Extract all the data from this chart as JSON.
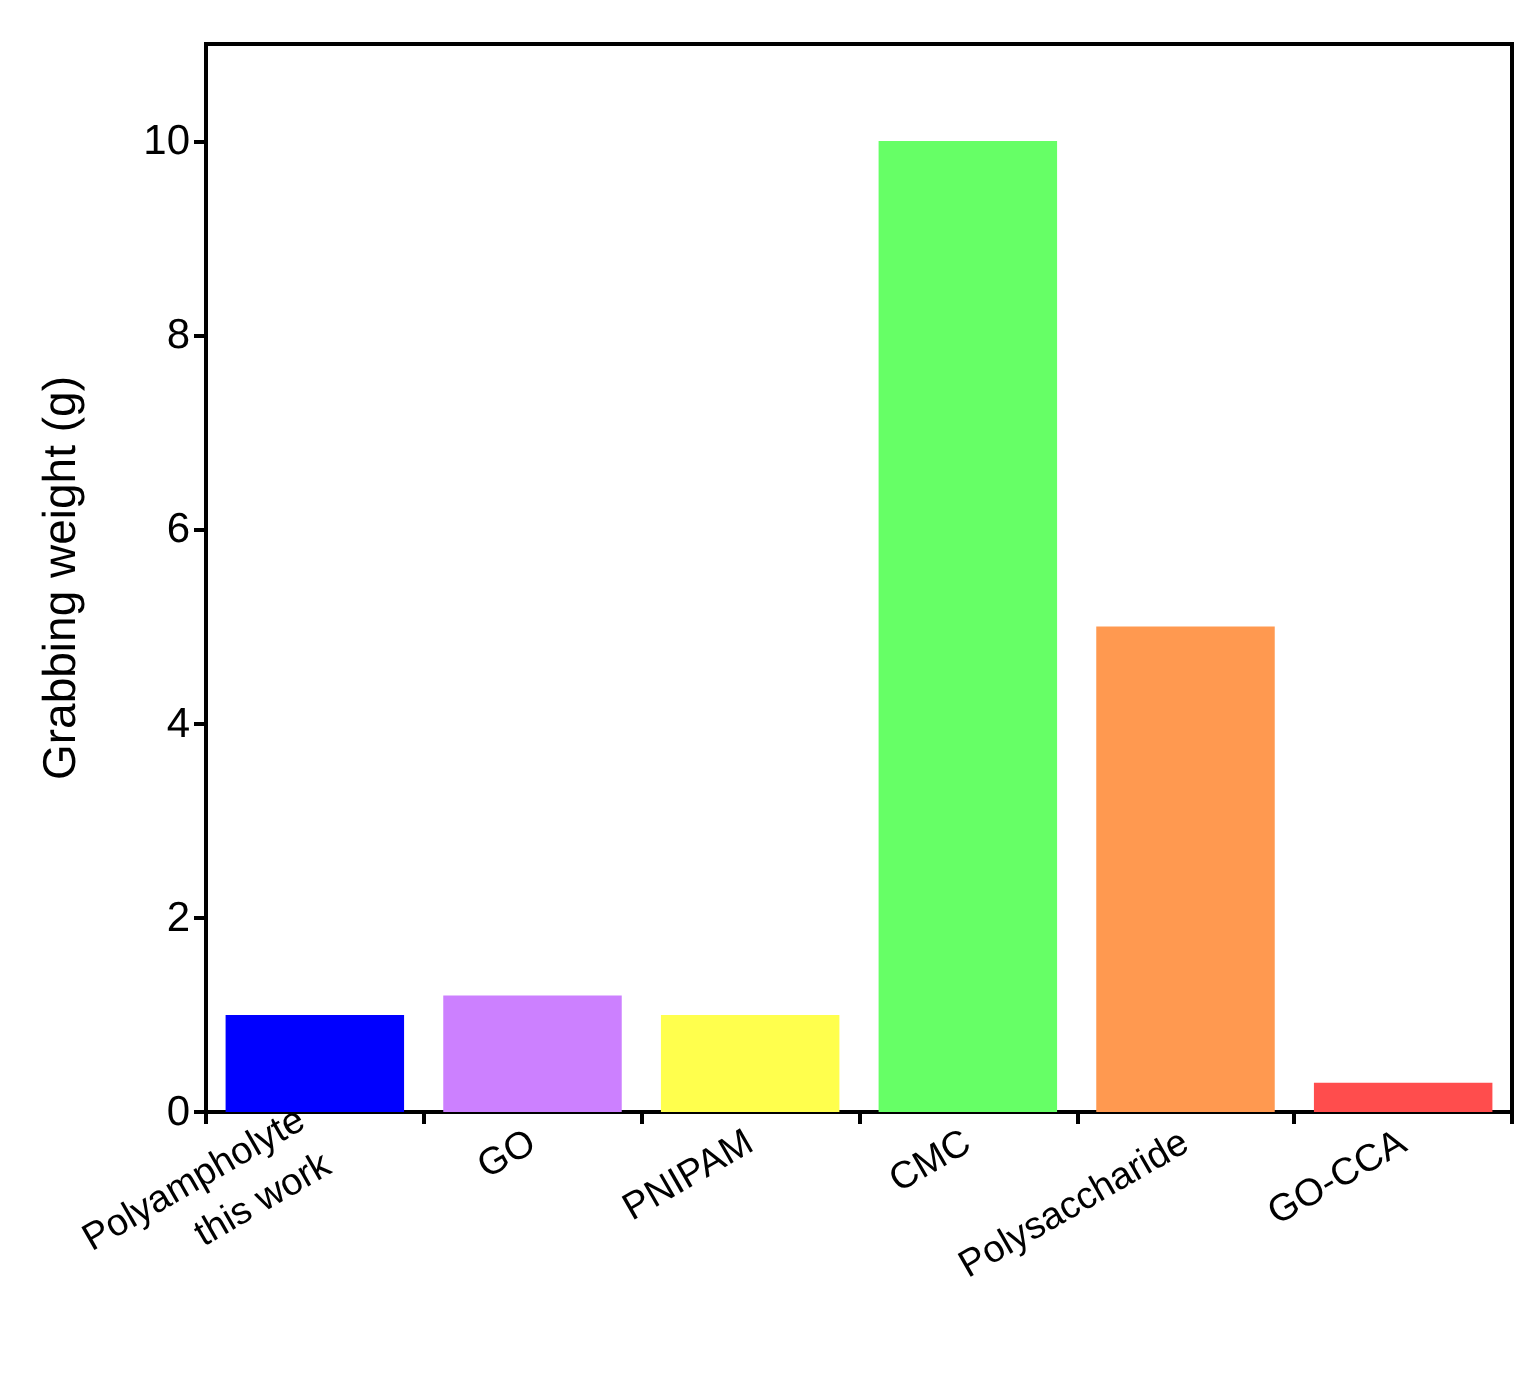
{
  "chart_data": {
    "type": "bar",
    "ylabel": "Grabbing weight (g)",
    "categories": [
      "Polyampholyte\nthis work",
      "GO",
      "PNIPAM",
      "CMC",
      "Polysaccharide",
      "GO-CCA"
    ],
    "values": [
      1,
      1.2,
      1,
      10,
      5,
      0.3
    ],
    "colors": [
      "#0000ff",
      "#cc80ff",
      "#ffff4d",
      "#66ff66",
      "#ff9950",
      "#ff4d4d"
    ],
    "ylim": [
      0,
      11
    ],
    "yticks": [
      0,
      2,
      4,
      6,
      8,
      10
    ],
    "grid": false
  }
}
